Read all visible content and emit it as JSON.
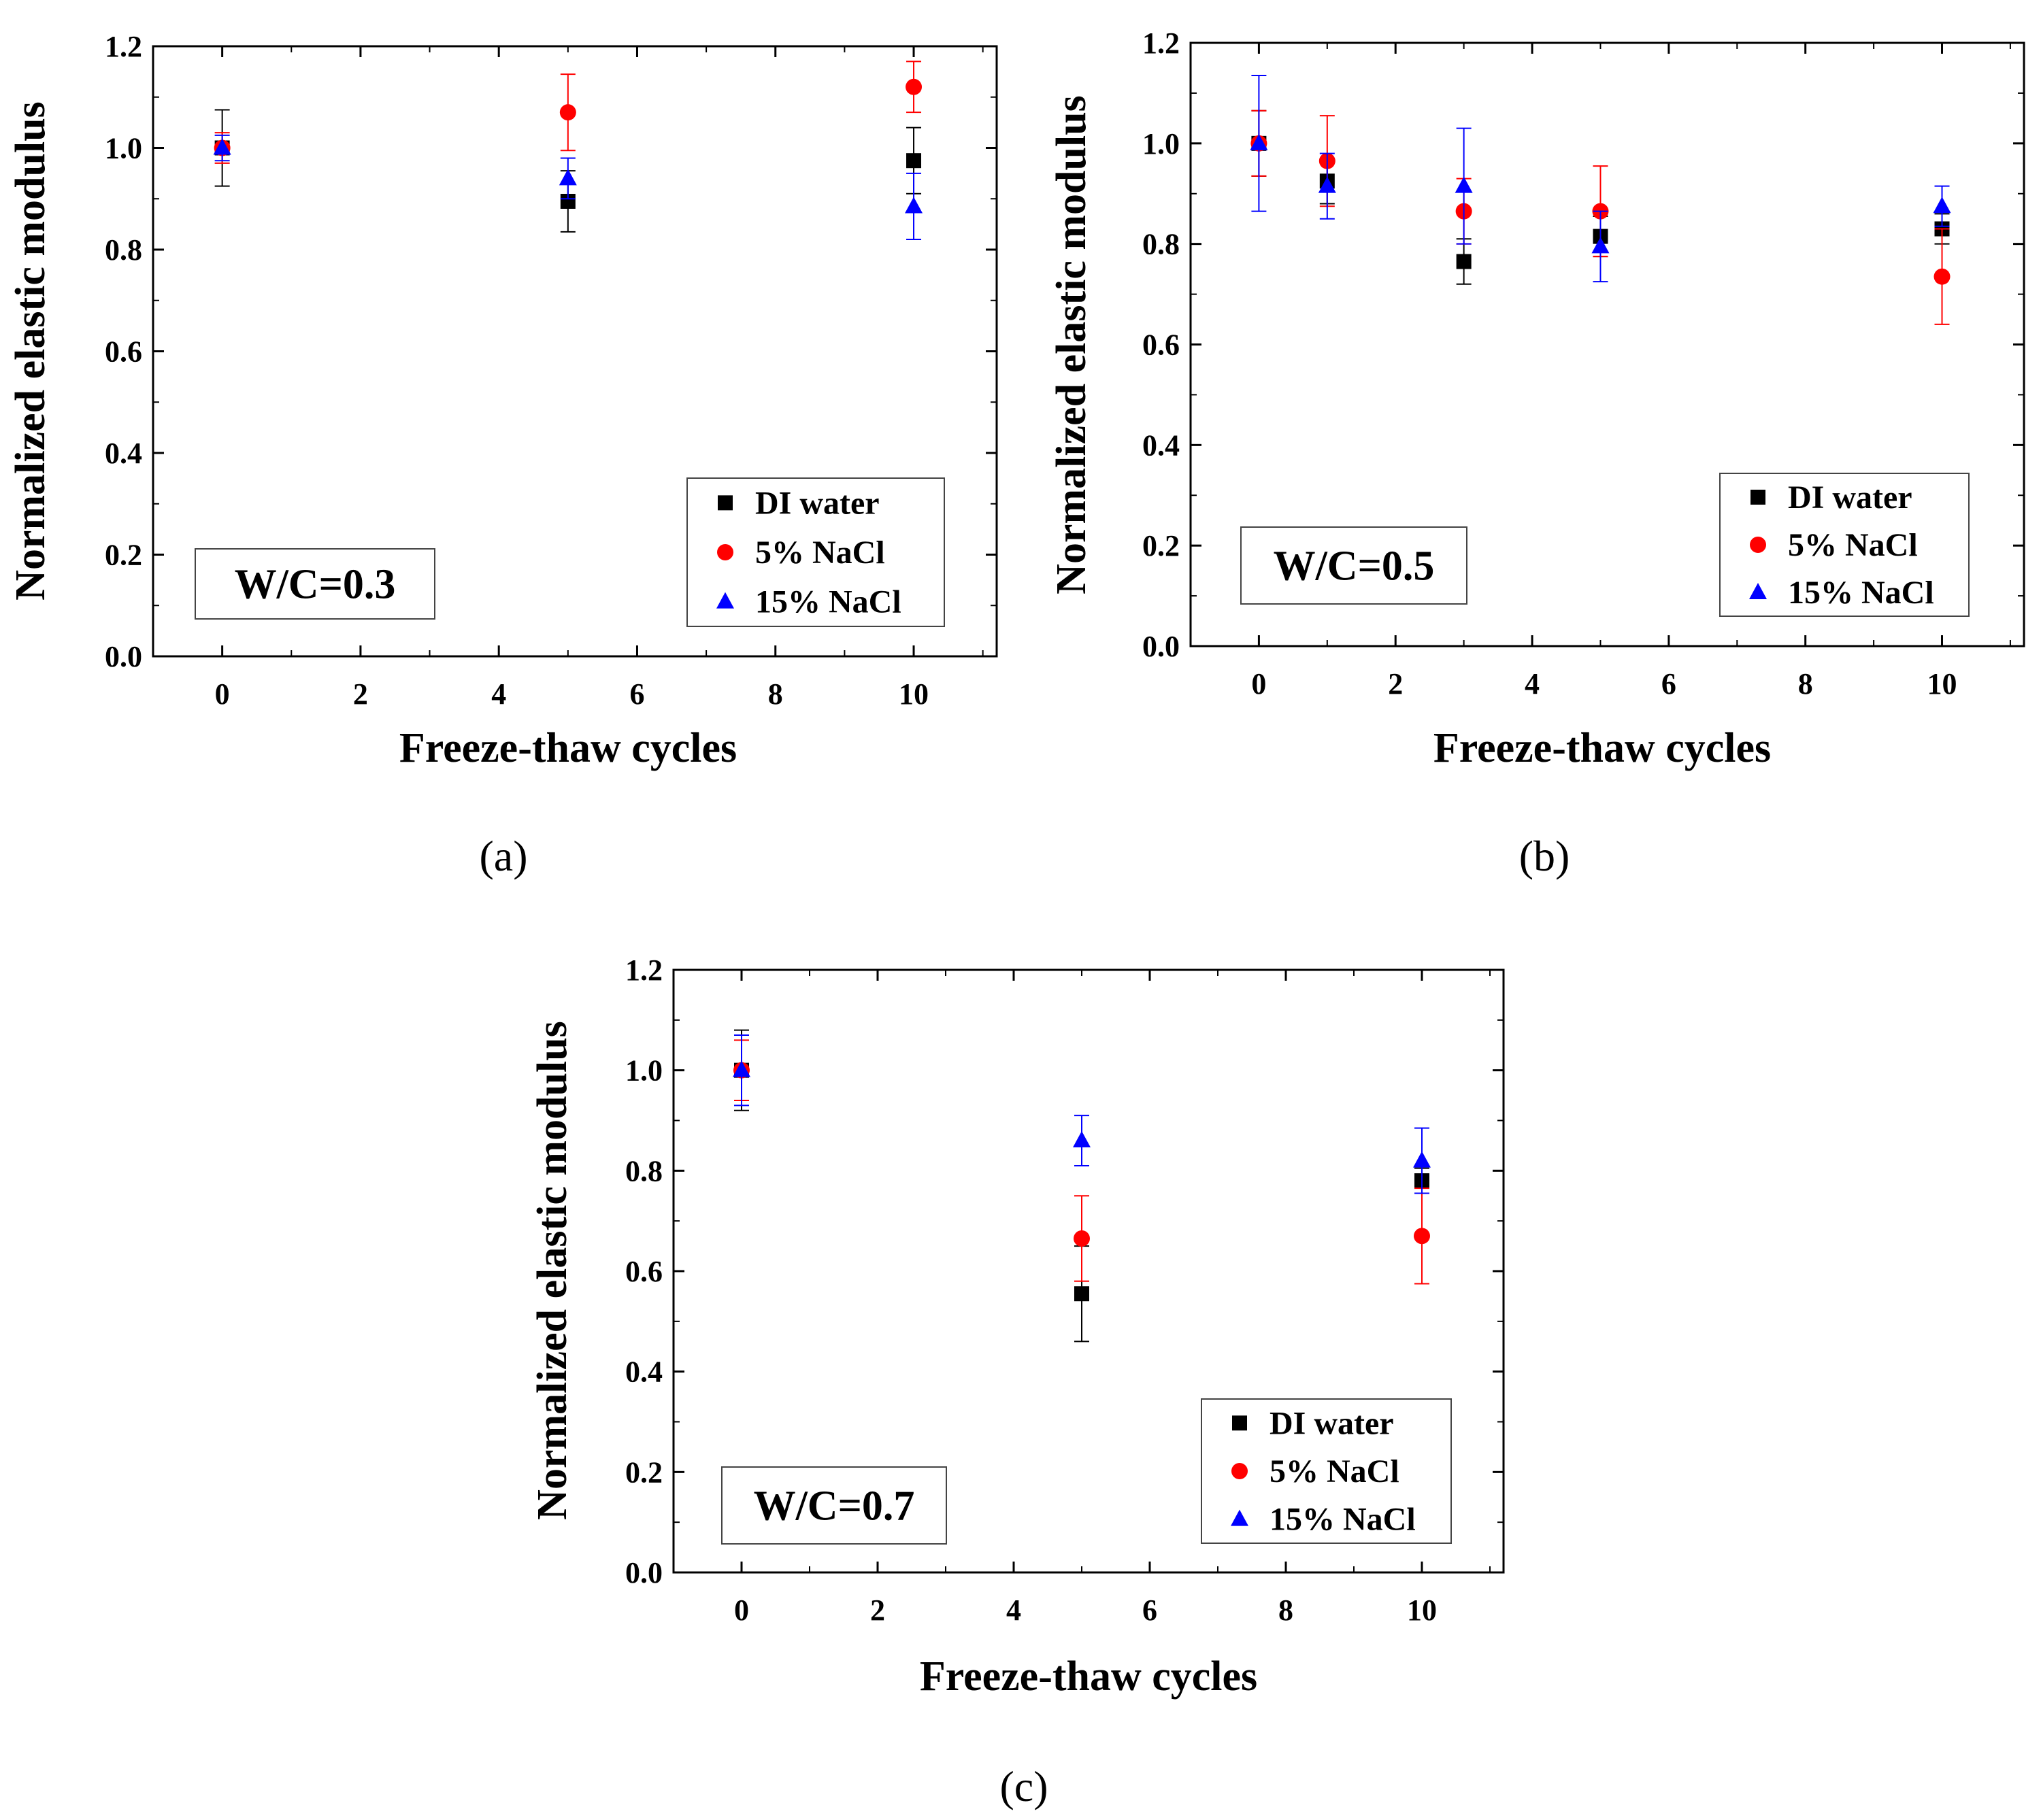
{
  "chart_data": [
    {
      "type": "scatter",
      "panel_label": "(a)",
      "annotation": "W/C=0.3",
      "xlabel": "Freeze-thaw cycles",
      "ylabel": "Normalized elastic modulus",
      "xlim": [
        -1,
        11.2
      ],
      "ylim": [
        0,
        1.2
      ],
      "xticks": [
        "0",
        "2",
        "4",
        "6",
        "8",
        "10"
      ],
      "yticks": [
        "0.0",
        "0.2",
        "0.4",
        "0.6",
        "0.8",
        "1.0",
        "1.2"
      ],
      "legend_position": "lower-right",
      "series": [
        {
          "name": "DI water",
          "marker": "square",
          "color": "#000000",
          "x": [
            0,
            5,
            10
          ],
          "y": [
            1.0,
            0.895,
            0.975
          ],
          "err": [
            0.075,
            0.06,
            0.065
          ]
        },
        {
          "name": "5% NaCl",
          "marker": "circle",
          "color": "#ff0000",
          "x": [
            0,
            5,
            10
          ],
          "y": [
            1.0,
            1.07,
            1.12
          ],
          "err": [
            0.03,
            0.075,
            0.05
          ]
        },
        {
          "name": "15% NaCl",
          "marker": "triangle",
          "color": "#0000ff",
          "x": [
            0,
            5,
            10
          ],
          "y": [
            1.0,
            0.94,
            0.885
          ],
          "err": [
            0.025,
            0.04,
            0.065
          ]
        }
      ]
    },
    {
      "type": "scatter",
      "panel_label": "(b)",
      "annotation": "W/C=0.5",
      "xlabel": "Freeze-thaw cycles",
      "ylabel": "Normalized elastic modulus",
      "xlim": [
        -1,
        11.2
      ],
      "ylim": [
        0,
        1.2
      ],
      "xticks": [
        "0",
        "2",
        "4",
        "6",
        "8",
        "10"
      ],
      "yticks": [
        "0.0",
        "0.2",
        "0.4",
        "0.6",
        "0.8",
        "1.0",
        "1.2"
      ],
      "legend_position": "lower-right",
      "series": [
        {
          "name": "DI water",
          "marker": "square",
          "color": "#000000",
          "x": [
            0,
            1,
            3,
            5,
            10
          ],
          "y": [
            1.0,
            0.925,
            0.765,
            0.815,
            0.83
          ],
          "err": [
            0.065,
            0.045,
            0.045,
            0.04,
            0.03
          ]
        },
        {
          "name": "5% NaCl",
          "marker": "circle",
          "color": "#ff0000",
          "x": [
            0,
            1,
            3,
            5,
            10
          ],
          "y": [
            1.0,
            0.965,
            0.865,
            0.865,
            0.735
          ],
          "err": [
            0.065,
            0.09,
            0.065,
            0.09,
            0.095
          ]
        },
        {
          "name": "15% NaCl",
          "marker": "triangle",
          "color": "#0000ff",
          "x": [
            0,
            1,
            3,
            5,
            10
          ],
          "y": [
            1.0,
            0.915,
            0.915,
            0.795,
            0.875
          ],
          "err": [
            0.135,
            0.065,
            0.115,
            0.07,
            0.04
          ]
        }
      ]
    },
    {
      "type": "scatter",
      "panel_label": "(c)",
      "annotation": "W/C=0.7",
      "xlabel": "Freeze-thaw cycles",
      "ylabel": "Normalized elastic modulus",
      "xlim": [
        -1,
        11.2
      ],
      "ylim": [
        0,
        1.2
      ],
      "xticks": [
        "0",
        "2",
        "4",
        "6",
        "8",
        "10"
      ],
      "yticks": [
        "0.0",
        "0.2",
        "0.4",
        "0.6",
        "0.8",
        "1.0",
        "1.2"
      ],
      "legend_position": "lower-right",
      "series": [
        {
          "name": "DI water",
          "marker": "square",
          "color": "#000000",
          "x": [
            0,
            5,
            10
          ],
          "y": [
            1.0,
            0.555,
            0.78
          ],
          "err": [
            0.08,
            0.095,
            0.025
          ]
        },
        {
          "name": "5% NaCl",
          "marker": "circle",
          "color": "#ff0000",
          "x": [
            0,
            5,
            10
          ],
          "y": [
            1.0,
            0.665,
            0.67
          ],
          "err": [
            0.06,
            0.085,
            0.095
          ]
        },
        {
          "name": "15% NaCl",
          "marker": "triangle",
          "color": "#0000ff",
          "x": [
            0,
            5,
            10
          ],
          "y": [
            1.0,
            0.86,
            0.82
          ],
          "err": [
            0.07,
            0.05,
            0.065
          ]
        }
      ]
    }
  ]
}
